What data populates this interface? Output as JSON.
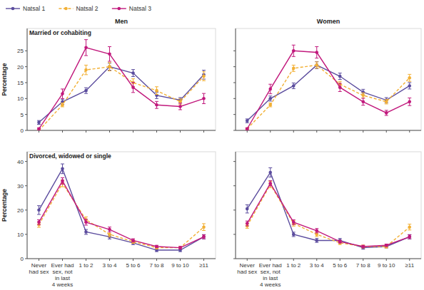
{
  "chart_data": [
    {
      "type": "line",
      "title": "Men",
      "subtitle": "Married or cohabiting",
      "y_label": "Percentage",
      "categories": [
        "Never had sex",
        "Ever had sex, not in last 4 weeks",
        "1 to 2",
        "3 to 4",
        "5 to 6",
        "7 to 8",
        "9 to 10",
        "≥11"
      ],
      "ylim": [
        0,
        32
      ],
      "yticks": [
        0,
        5,
        10,
        15,
        20,
        25
      ],
      "grid": false,
      "tick_labels": "y",
      "legend": "top-left",
      "series": [
        {
          "name": "Natsal 1",
          "color": "#5b4c9e",
          "line_style": "solid",
          "marker": "circle",
          "values": [
            2.5,
            9,
            12.5,
            20,
            18,
            11,
            9.5,
            17.5
          ],
          "errors": [
            0.6,
            0.8,
            0.9,
            1.1,
            1.1,
            1.0,
            0.8,
            1.4
          ]
        },
        {
          "name": "Natsal 2",
          "color": "#f2b035",
          "line_style": "dashed",
          "marker": "circle",
          "values": [
            0,
            8,
            19,
            20,
            15,
            12.5,
            9,
            17
          ],
          "errors": [
            0.2,
            0.6,
            1.5,
            1.3,
            1.2,
            1.2,
            0.9,
            1.4
          ]
        },
        {
          "name": "Natsal 3",
          "color": "#c1187c",
          "line_style": "solid",
          "marker": "circle",
          "values": [
            0.5,
            11.5,
            26,
            24,
            13.5,
            8,
            7.5,
            10
          ],
          "errors": [
            0.3,
            1.5,
            2.5,
            2.3,
            1.6,
            1.1,
            1.0,
            1.6
          ]
        }
      ]
    },
    {
      "type": "line",
      "title": "Women",
      "categories": [
        "Never had sex",
        "Ever had sex, not in last 4 weeks",
        "1 to 2",
        "3 to 4",
        "5 to 6",
        "7 to 8",
        "9 to 10",
        "≥11"
      ],
      "ylim": [
        0,
        32
      ],
      "yticks": [
        0,
        5,
        10,
        15,
        20,
        25
      ],
      "grid": false,
      "tick_labels": false,
      "series": [
        {
          "name": "Natsal 1",
          "color": "#5b4c9e",
          "line_style": "solid",
          "marker": "circle",
          "values": [
            3,
            10,
            14,
            20.5,
            17,
            12,
            9.5,
            14
          ],
          "errors": [
            0.6,
            0.8,
            0.9,
            1.1,
            1.0,
            0.9,
            0.8,
            1.0
          ]
        },
        {
          "name": "Natsal 2",
          "color": "#f2b035",
          "line_style": "dashed",
          "marker": "circle",
          "values": [
            0.5,
            8,
            19.5,
            20.5,
            14.5,
            11,
            9,
            16.5
          ],
          "errors": [
            0.2,
            0.6,
            1.0,
            1.0,
            0.9,
            0.8,
            0.7,
            1.1
          ]
        },
        {
          "name": "Natsal 3",
          "color": "#c1187c",
          "line_style": "solid",
          "marker": "circle",
          "values": [
            0.5,
            13,
            25,
            24.5,
            13.5,
            9,
            5.5,
            9
          ],
          "errors": [
            0.3,
            1.5,
            1.8,
            1.8,
            1.3,
            1.1,
            0.8,
            1.2
          ]
        }
      ]
    },
    {
      "type": "line",
      "subtitle": "Divorced, widowed or single",
      "y_label": "Percentage",
      "categories": [
        "Never had sex",
        "Ever had sex, not in last 4 weeks",
        "1 to 2",
        "3 to 4",
        "5 to 6",
        "7 to 8",
        "9 to 10",
        "≥11"
      ],
      "ylim": [
        0,
        44
      ],
      "yticks": [
        0,
        10,
        20,
        30,
        40
      ],
      "grid": false,
      "tick_labels": true,
      "series": [
        {
          "name": "Natsal 1",
          "color": "#5b4c9e",
          "line_style": "solid",
          "marker": "circle",
          "values": [
            20,
            37,
            11,
            9,
            6.5,
            3.5,
            3.5,
            9
          ],
          "errors": [
            1.8,
            2.0,
            1.0,
            0.9,
            0.7,
            0.6,
            0.6,
            0.9
          ]
        },
        {
          "name": "Natsal 2",
          "color": "#f2b035",
          "line_style": "dashed",
          "marker": "circle",
          "values": [
            14,
            31,
            16,
            10,
            7,
            4.5,
            4.5,
            13
          ],
          "errors": [
            1.1,
            1.4,
            1.2,
            1.0,
            0.7,
            0.5,
            0.5,
            1.4
          ]
        },
        {
          "name": "Natsal 3",
          "color": "#c1187c",
          "line_style": "solid",
          "marker": "circle",
          "values": [
            15,
            32,
            15,
            12,
            7.5,
            5,
            4.5,
            9
          ],
          "errors": [
            1.0,
            1.3,
            1.2,
            1.0,
            0.7,
            0.5,
            0.5,
            0.8
          ]
        }
      ]
    },
    {
      "type": "line",
      "categories": [
        "Never had sex",
        "Ever had sex, not in last 4 weeks",
        "1 to 2",
        "3 to 4",
        "5 to 6",
        "7 to 8",
        "9 to 10",
        "≥11"
      ],
      "ylim": [
        0,
        44
      ],
      "yticks": [
        0,
        10,
        20,
        30,
        40
      ],
      "grid": false,
      "tick_labels": "x",
      "series": [
        {
          "name": "Natsal 1",
          "color": "#5b4c9e",
          "line_style": "solid",
          "marker": "circle",
          "values": [
            20.5,
            35.5,
            10,
            7.5,
            7.5,
            4.5,
            5,
            9
          ],
          "errors": [
            1.7,
            1.9,
            0.9,
            0.8,
            0.8,
            0.6,
            0.6,
            0.9
          ]
        },
        {
          "name": "Natsal 2",
          "color": "#f2b035",
          "line_style": "dashed",
          "marker": "circle",
          "values": [
            13.5,
            30.5,
            14.5,
            10,
            6.5,
            5,
            5,
            13
          ],
          "errors": [
            1.0,
            1.3,
            1.1,
            0.9,
            0.7,
            0.6,
            0.6,
            1.2
          ]
        },
        {
          "name": "Natsal 3",
          "color": "#c1187c",
          "line_style": "solid",
          "marker": "circle",
          "values": [
            14.5,
            31,
            15,
            11.5,
            7,
            5,
            5.5,
            9
          ],
          "errors": [
            1.0,
            1.1,
            1.0,
            0.9,
            0.6,
            0.5,
            0.5,
            0.8
          ]
        }
      ]
    }
  ]
}
